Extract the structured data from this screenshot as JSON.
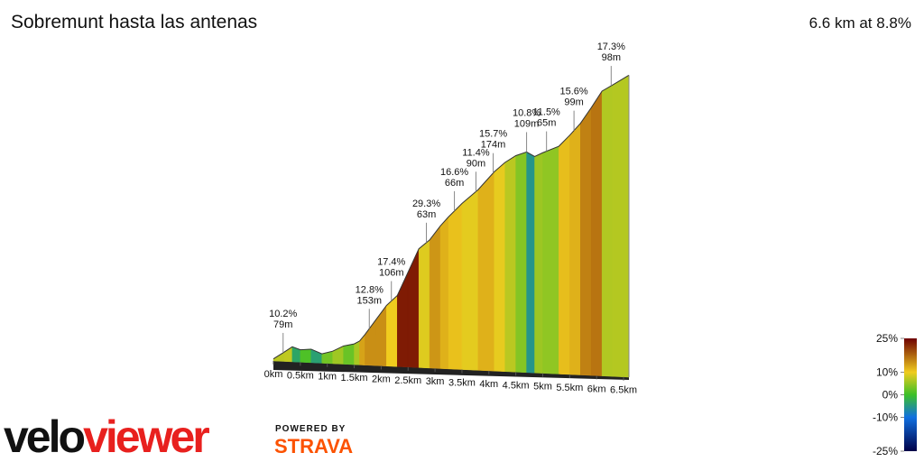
{
  "chart_data": {
    "type": "profile",
    "title": "Sobremunt hasta las antenas",
    "subtitle": "6.6 km at 8.8%",
    "x": [
      0,
      0.2,
      0.35,
      0.5,
      0.7,
      0.9,
      1.1,
      1.3,
      1.5,
      1.6,
      1.7,
      1.9,
      2.1,
      2.3,
      2.5,
      2.7,
      2.9,
      3.1,
      3.25,
      3.5,
      3.8,
      4.1,
      4.3,
      4.5,
      4.7,
      4.85,
      5.0,
      5.3,
      5.5,
      5.7,
      5.9,
      6.1,
      6.3,
      6.6
    ],
    "values": [
      4,
      18,
      29,
      24,
      26,
      18,
      24,
      35,
      40,
      46,
      59,
      88,
      117,
      137,
      183,
      229,
      247,
      275,
      293,
      320,
      348,
      384,
      403,
      417,
      425,
      417,
      425,
      439,
      461,
      485,
      516,
      549,
      562,
      582
    ],
    "xlim": [
      0,
      6.6
    ],
    "ylim": [
      0,
      600
    ],
    "xticks": [
      {
        "value": 0,
        "label": "0km"
      },
      {
        "value": 0.5,
        "label": "0.5km"
      },
      {
        "value": 1,
        "label": "1km"
      },
      {
        "value": 1.5,
        "label": "1.5km"
      },
      {
        "value": 2,
        "label": "2km"
      },
      {
        "value": 2.5,
        "label": "2.5km"
      },
      {
        "value": 3,
        "label": "3km"
      },
      {
        "value": 3.5,
        "label": "3.5km"
      },
      {
        "value": 4,
        "label": "4km"
      },
      {
        "value": 4.5,
        "label": "4.5km"
      },
      {
        "value": 5,
        "label": "5km"
      },
      {
        "value": 5.5,
        "label": "5.5km"
      },
      {
        "value": 6,
        "label": "6km"
      },
      {
        "value": 6.5,
        "label": "6.5km"
      }
    ],
    "annotations": [
      {
        "x": 0.18,
        "grade": "10.2%",
        "length": "79m"
      },
      {
        "x": 1.78,
        "grade": "12.8%",
        "length": "153m"
      },
      {
        "x": 2.19,
        "grade": "17.4%",
        "length": "106m"
      },
      {
        "x": 2.84,
        "grade": "29.3%",
        "length": "63m"
      },
      {
        "x": 3.36,
        "grade": "16.6%",
        "length": "66m"
      },
      {
        "x": 3.76,
        "grade": "11.4%",
        "length": "90m"
      },
      {
        "x": 4.08,
        "grade": "15.7%",
        "length": "174m"
      },
      {
        "x": 4.7,
        "grade": "10.8%",
        "length": "109m"
      },
      {
        "x": 5.07,
        "grade": "11.5%",
        "length": "65m"
      },
      {
        "x": 5.58,
        "grade": "15.6%",
        "length": "99m"
      },
      {
        "x": 6.27,
        "grade": "17.3%",
        "length": "98m"
      }
    ],
    "color_scale": {
      "ticks": [
        {
          "value": 25,
          "label": "25%"
        },
        {
          "value": 10,
          "label": "10%"
        },
        {
          "value": 0,
          "label": "0%"
        },
        {
          "value": -10,
          "label": "-10%"
        },
        {
          "value": -25,
          "label": "-25%"
        }
      ],
      "colors": [
        "#6e0000",
        "#f0cc1e",
        "#3cc028",
        "#1070e0",
        "#000048"
      ]
    }
  },
  "branding": {
    "logo_part1": "velo",
    "logo_part2": "viewer",
    "powered": "POWERED BY",
    "strava": "STRAVA"
  }
}
